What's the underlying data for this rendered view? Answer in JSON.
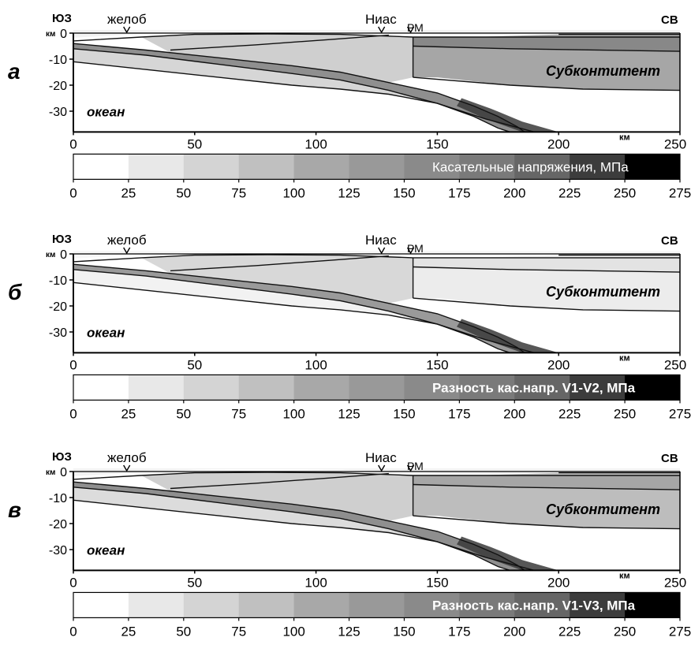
{
  "geo": {
    "sw": "ЮЗ",
    "ne": "СВ",
    "trench": "желоб",
    "nias": "Ниас",
    "rm": "РМ",
    "km_unit": "км",
    "ocean": "океан",
    "continent": "Субконтитент"
  },
  "axes": {
    "y_ticks": [
      "0",
      "-10",
      "-20",
      "-30"
    ],
    "x_ticks": [
      "0",
      "50",
      "100",
      "150",
      "200",
      "250"
    ],
    "scale_ticks": [
      "0",
      "25",
      "50",
      "75",
      "100",
      "125",
      "150",
      "175",
      "200",
      "225",
      "250",
      "275"
    ]
  },
  "panels": [
    {
      "letter": "а",
      "scale_label": "Касательные напряжения, МПа"
    },
    {
      "letter": "б",
      "scale_label": "Разность кас.напр. V1-V2, МПа"
    },
    {
      "letter": "в",
      "scale_label": "Разность кас.напр. V1-V3, МПа"
    }
  ],
  "scale_colors": [
    "#ffffff",
    "#e8e8e8",
    "#d4d4d4",
    "#c0c0c0",
    "#a8a8a8",
    "#999999",
    "#8a8a8a",
    "#7a7a7a",
    "#666666",
    "#3c3c3c",
    "#000000"
  ],
  "fill_colors": {
    "a": {
      "continent": "#a6a6a6",
      "continent_band": "#888888",
      "wedge": "#cfcfcf",
      "slab": "#8f8f8f",
      "oceanic": "#d6d6d6",
      "crust": "#f2f2f2"
    },
    "b": {
      "continent": "#ececec",
      "continent_band": "#e3e3e3",
      "wedge": "#d8d8d8",
      "slab": "#9a9a9a",
      "oceanic": "#f2f2f2",
      "crust": "#f7f7f7"
    },
    "c": {
      "continent": "#bdbdbd",
      "continent_band": "#a6a6a6",
      "wedge": "#cfcfcf",
      "slab": "#8f8f8f",
      "oceanic": "#dcdcdc",
      "crust": "#f2f2f2"
    }
  }
}
